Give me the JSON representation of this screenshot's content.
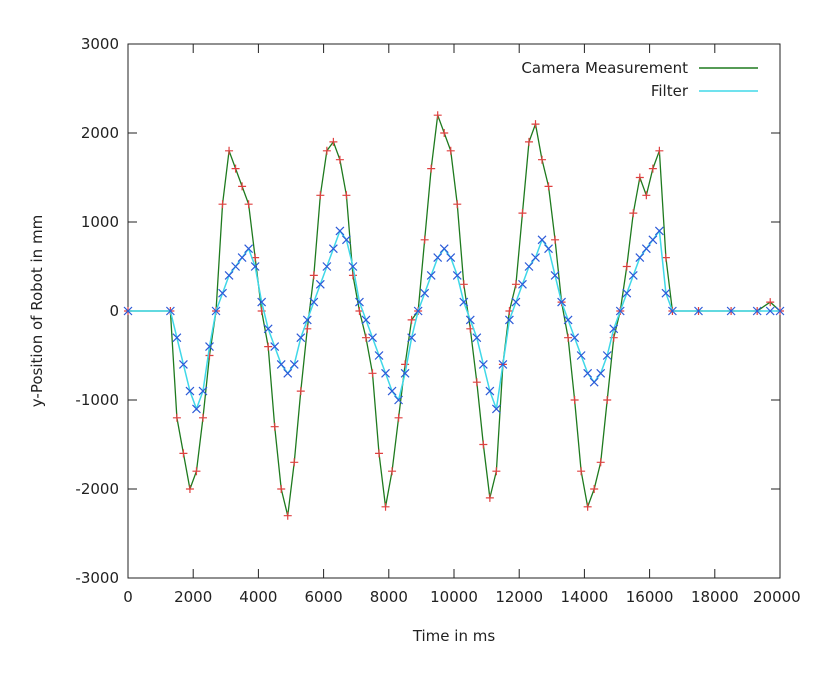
{
  "chart_data": {
    "type": "line",
    "title": "",
    "xlabel": "Time in ms",
    "ylabel": "y-Position of Robot in mm",
    "xlim": [
      0,
      20000
    ],
    "ylim": [
      -3000,
      3000
    ],
    "x_ticks": [
      0,
      2000,
      4000,
      6000,
      8000,
      10000,
      12000,
      14000,
      16000,
      18000,
      20000
    ],
    "x_tick_labels": [
      "0",
      "2000",
      "4000",
      "6000",
      "8000",
      "10000",
      "12000",
      "14000",
      "16000",
      "18000",
      "20000"
    ],
    "y_ticks": [
      -3000,
      -2000,
      -1000,
      0,
      1000,
      2000,
      3000
    ],
    "y_tick_labels": [
      "-3000",
      "-2000",
      "-1000",
      "0",
      "1000",
      "2000",
      "3000"
    ],
    "grid": false,
    "legend_position": "top-right",
    "series": [
      {
        "name": "Camera Measurement",
        "color": "#1e7a1e",
        "marker_color": "#e04040",
        "marker": "plus",
        "x": [
          0,
          1300,
          1500,
          1700,
          1900,
          2100,
          2300,
          2500,
          2700,
          2900,
          3100,
          3300,
          3500,
          3700,
          3900,
          4100,
          4300,
          4500,
          4700,
          4900,
          5100,
          5300,
          5500,
          5700,
          5900,
          6100,
          6300,
          6500,
          6700,
          6900,
          7100,
          7300,
          7500,
          7700,
          7900,
          8100,
          8300,
          8500,
          8700,
          8900,
          9100,
          9300,
          9500,
          9700,
          9900,
          10100,
          10300,
          10500,
          10700,
          10900,
          11100,
          11300,
          11500,
          11700,
          11900,
          12100,
          12300,
          12500,
          12700,
          12900,
          13100,
          13300,
          13500,
          13700,
          13900,
          14100,
          14300,
          14500,
          14700,
          14900,
          15100,
          15300,
          15500,
          15700,
          15900,
          16100,
          16300,
          16500,
          16700,
          17500,
          18500,
          19300,
          19700,
          20000
        ],
        "y": [
          0,
          0,
          -1200,
          -1600,
          -2000,
          -1800,
          -1200,
          -500,
          0,
          1200,
          1800,
          1600,
          1400,
          1200,
          600,
          0,
          -400,
          -1300,
          -2000,
          -2300,
          -1700,
          -900,
          -200,
          400,
          1300,
          1800,
          1900,
          1700,
          1300,
          400,
          0,
          -300,
          -700,
          -1600,
          -2200,
          -1800,
          -1200,
          -600,
          -100,
          0,
          800,
          1600,
          2200,
          2000,
          1800,
          1200,
          300,
          -200,
          -800,
          -1500,
          -2100,
          -1800,
          -600,
          0,
          300,
          1100,
          1900,
          2100,
          1700,
          1400,
          800,
          100,
          -300,
          -1000,
          -1800,
          -2200,
          -2000,
          -1700,
          -1000,
          -300,
          0,
          500,
          1100,
          1500,
          1300,
          1600,
          1800,
          600,
          0,
          0,
          0,
          0,
          100,
          0
        ]
      },
      {
        "name": "Filter",
        "color": "#40d8e8",
        "marker_color": "#2d5ad8",
        "marker": "cross",
        "x": [
          0,
          1300,
          1500,
          1700,
          1900,
          2100,
          2300,
          2500,
          2700,
          2900,
          3100,
          3300,
          3500,
          3700,
          3900,
          4100,
          4300,
          4500,
          4700,
          4900,
          5100,
          5300,
          5500,
          5700,
          5900,
          6100,
          6300,
          6500,
          6700,
          6900,
          7100,
          7300,
          7500,
          7700,
          7900,
          8100,
          8300,
          8500,
          8700,
          8900,
          9100,
          9300,
          9500,
          9700,
          9900,
          10100,
          10300,
          10500,
          10700,
          10900,
          11100,
          11300,
          11500,
          11700,
          11900,
          12100,
          12300,
          12500,
          12700,
          12900,
          13100,
          13300,
          13500,
          13700,
          13900,
          14100,
          14300,
          14500,
          14700,
          14900,
          15100,
          15300,
          15500,
          15700,
          15900,
          16100,
          16300,
          16500,
          16700,
          17500,
          18500,
          19300,
          19700,
          20000
        ],
        "y": [
          0,
          0,
          -300,
          -600,
          -900,
          -1100,
          -900,
          -400,
          0,
          200,
          400,
          500,
          600,
          700,
          500,
          100,
          -200,
          -400,
          -600,
          -700,
          -600,
          -300,
          -100,
          100,
          300,
          500,
          700,
          900,
          800,
          500,
          100,
          -100,
          -300,
          -500,
          -700,
          -900,
          -1000,
          -700,
          -300,
          0,
          200,
          400,
          600,
          700,
          600,
          400,
          100,
          -100,
          -300,
          -600,
          -900,
          -1100,
          -600,
          -100,
          100,
          300,
          500,
          600,
          800,
          700,
          400,
          100,
          -100,
          -300,
          -500,
          -700,
          -800,
          -700,
          -500,
          -200,
          0,
          200,
          400,
          600,
          700,
          800,
          900,
          200,
          0,
          0,
          0,
          0,
          0,
          0
        ]
      }
    ]
  }
}
